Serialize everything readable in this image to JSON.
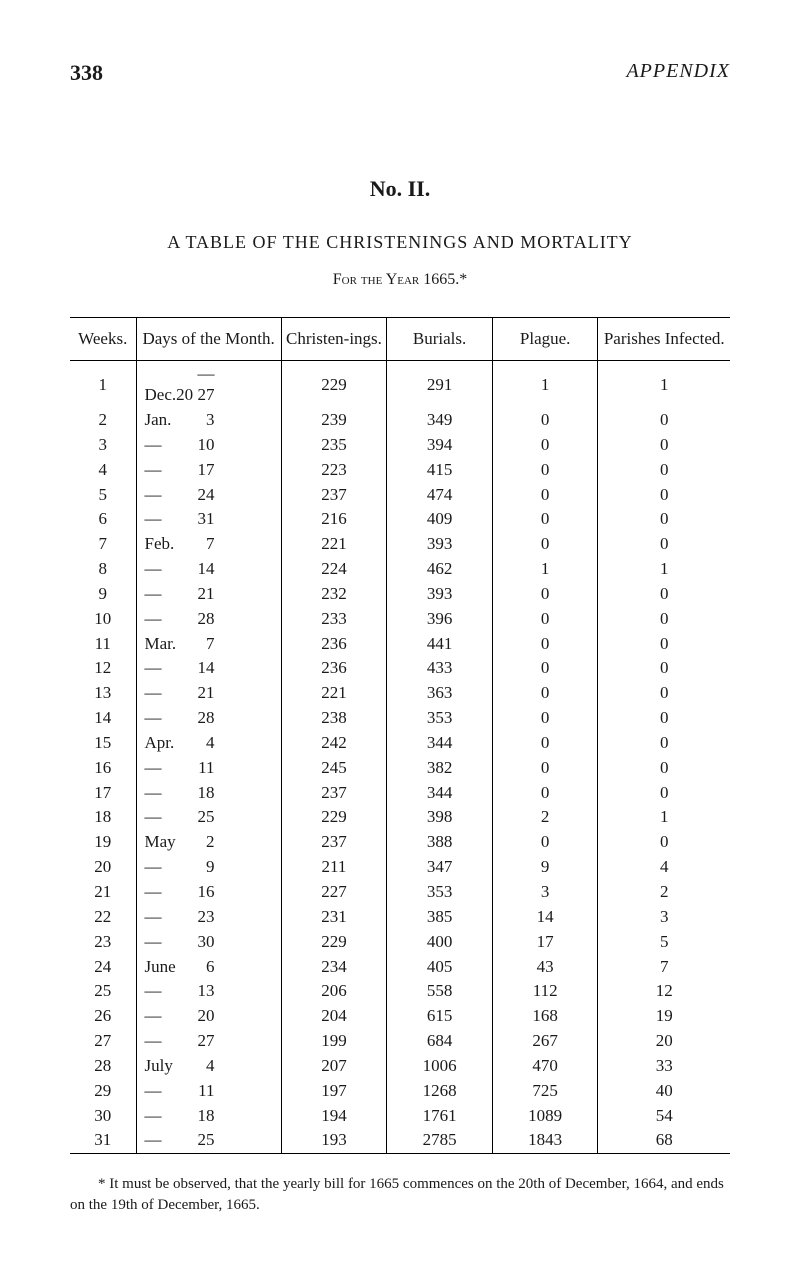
{
  "header": {
    "page_number": "338",
    "running_head": "APPENDIX"
  },
  "section": {
    "number": "No. II.",
    "title": "A TABLE OF THE CHRISTENINGS AND MORTALITY",
    "subtitle": "For the Year 1665.*"
  },
  "table": {
    "columns": {
      "weeks": "Weeks.",
      "days": "Days of the Month.",
      "christenings": "Christen-ings.",
      "burials": "Burials.",
      "plague": "Plague.",
      "parishes": "Parishes Infected."
    },
    "rows": [
      {
        "week": "1",
        "month": "Dec.20",
        "day": "—27",
        "chr": "229",
        "bur": "291",
        "pla": "1",
        "par": "1"
      },
      {
        "week": "2",
        "month": "Jan.",
        "day": "3",
        "chr": "239",
        "bur": "349",
        "pla": "0",
        "par": "0"
      },
      {
        "week": "3",
        "month": "—",
        "day": "10",
        "chr": "235",
        "bur": "394",
        "pla": "0",
        "par": "0"
      },
      {
        "week": "4",
        "month": "—",
        "day": "17",
        "chr": "223",
        "bur": "415",
        "pla": "0",
        "par": "0"
      },
      {
        "week": "5",
        "month": "—",
        "day": "24",
        "chr": "237",
        "bur": "474",
        "pla": "0",
        "par": "0"
      },
      {
        "week": "6",
        "month": "—",
        "day": "31",
        "chr": "216",
        "bur": "409",
        "pla": "0",
        "par": "0"
      },
      {
        "week": "7",
        "month": "Feb.",
        "day": "7",
        "chr": "221",
        "bur": "393",
        "pla": "0",
        "par": "0"
      },
      {
        "week": "8",
        "month": "—",
        "day": "14",
        "chr": "224",
        "bur": "462",
        "pla": "1",
        "par": "1"
      },
      {
        "week": "9",
        "month": "—",
        "day": "21",
        "chr": "232",
        "bur": "393",
        "pla": "0",
        "par": "0"
      },
      {
        "week": "10",
        "month": "—",
        "day": "28",
        "chr": "233",
        "bur": "396",
        "pla": "0",
        "par": "0"
      },
      {
        "week": "11",
        "month": "Mar.",
        "day": "7",
        "chr": "236",
        "bur": "441",
        "pla": "0",
        "par": "0"
      },
      {
        "week": "12",
        "month": "—",
        "day": "14",
        "chr": "236",
        "bur": "433",
        "pla": "0",
        "par": "0"
      },
      {
        "week": "13",
        "month": "—",
        "day": "21",
        "chr": "221",
        "bur": "363",
        "pla": "0",
        "par": "0"
      },
      {
        "week": "14",
        "month": "—",
        "day": "28",
        "chr": "238",
        "bur": "353",
        "pla": "0",
        "par": "0"
      },
      {
        "week": "15",
        "month": "Apr.",
        "day": "4",
        "chr": "242",
        "bur": "344",
        "pla": "0",
        "par": "0"
      },
      {
        "week": "16",
        "month": "—",
        "day": "11",
        "chr": "245",
        "bur": "382",
        "pla": "0",
        "par": "0"
      },
      {
        "week": "17",
        "month": "—",
        "day": "18",
        "chr": "237",
        "bur": "344",
        "pla": "0",
        "par": "0"
      },
      {
        "week": "18",
        "month": "—",
        "day": "25",
        "chr": "229",
        "bur": "398",
        "pla": "2",
        "par": "1"
      },
      {
        "week": "19",
        "month": "May",
        "day": "2",
        "chr": "237",
        "bur": "388",
        "pla": "0",
        "par": "0"
      },
      {
        "week": "20",
        "month": "—",
        "day": "9",
        "chr": "211",
        "bur": "347",
        "pla": "9",
        "par": "4"
      },
      {
        "week": "21",
        "month": "—",
        "day": "16",
        "chr": "227",
        "bur": "353",
        "pla": "3",
        "par": "2"
      },
      {
        "week": "22",
        "month": "—",
        "day": "23",
        "chr": "231",
        "bur": "385",
        "pla": "14",
        "par": "3"
      },
      {
        "week": "23",
        "month": "—",
        "day": "30",
        "chr": "229",
        "bur": "400",
        "pla": "17",
        "par": "5"
      },
      {
        "week": "24",
        "month": "June",
        "day": "6",
        "chr": "234",
        "bur": "405",
        "pla": "43",
        "par": "7"
      },
      {
        "week": "25",
        "month": "—",
        "day": "13",
        "chr": "206",
        "bur": "558",
        "pla": "112",
        "par": "12"
      },
      {
        "week": "26",
        "month": "—",
        "day": "20",
        "chr": "204",
        "bur": "615",
        "pla": "168",
        "par": "19"
      },
      {
        "week": "27",
        "month": "—",
        "day": "27",
        "chr": "199",
        "bur": "684",
        "pla": "267",
        "par": "20"
      },
      {
        "week": "28",
        "month": "July",
        "day": "4",
        "chr": "207",
        "bur": "1006",
        "pla": "470",
        "par": "33"
      },
      {
        "week": "29",
        "month": "—",
        "day": "11",
        "chr": "197",
        "bur": "1268",
        "pla": "725",
        "par": "40"
      },
      {
        "week": "30",
        "month": "—",
        "day": "18",
        "chr": "194",
        "bur": "1761",
        "pla": "1089",
        "par": "54"
      },
      {
        "week": "31",
        "month": "—",
        "day": "25",
        "chr": "193",
        "bur": "2785",
        "pla": "1843",
        "par": "68"
      }
    ]
  },
  "footnote": "* It must be observed, that the yearly bill for 1665 commences on the 20th of December, 1664, and ends on the 19th of December, 1665."
}
